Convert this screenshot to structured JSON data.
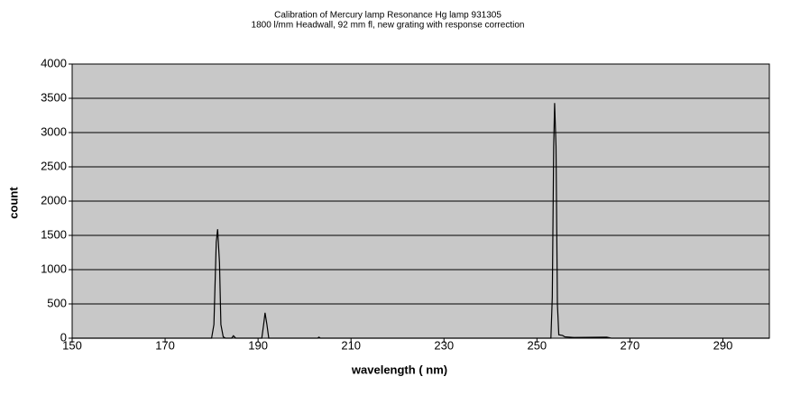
{
  "chart_data": {
    "type": "line",
    "title": "Calibration of Mercury lamp Resonance Hg lamp 931305",
    "subtitle": "1800 l/mm Headwall, 92 mm fl, new grating with response correction",
    "x_label": "wavelength ( nm)",
    "y_label": "count",
    "x": [
      150,
      180,
      180.5,
      181,
      181.3,
      181.7,
      182,
      182.5,
      183,
      184.3,
      184.7,
      185.2,
      190.8,
      191.2,
      191.5,
      191.9,
      192.3,
      202.8,
      203.1,
      203.4,
      253,
      253.3,
      253.6,
      253.8,
      254.1,
      254.4,
      254.7,
      255.5,
      256,
      258,
      265,
      266,
      300
    ],
    "series": [
      {
        "color": "#000000",
        "values": [
          0,
          0,
          200,
          1400,
          1590,
          1100,
          200,
          20,
          0,
          0,
          35,
          0,
          0,
          200,
          370,
          200,
          0,
          0,
          15,
          0,
          0,
          600,
          2800,
          3430,
          2800,
          500,
          50,
          40,
          20,
          10,
          15,
          0,
          0
        ]
      }
    ],
    "xlim": [
      150,
      300
    ],
    "xticks": [
      150,
      170,
      190,
      210,
      230,
      250,
      270,
      290
    ],
    "ylim": [
      0,
      4000
    ],
    "yticks": [
      0,
      500,
      1000,
      1500,
      2000,
      2500,
      3000,
      3500,
      4000
    ],
    "grid": true,
    "plot_background": "#c8c8c8"
  }
}
